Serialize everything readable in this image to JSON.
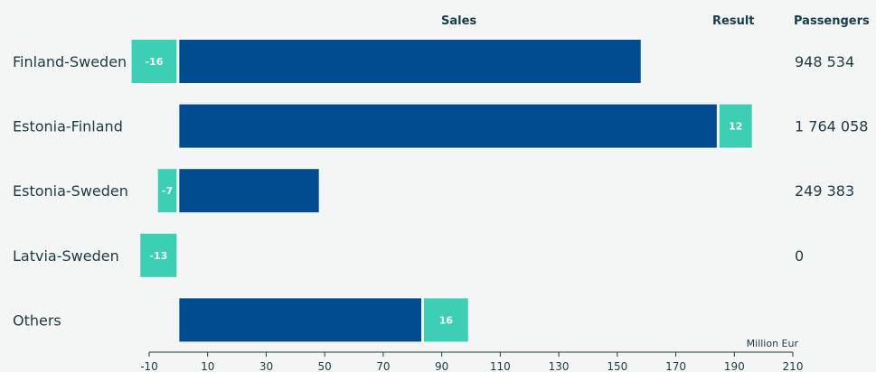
{
  "colors": {
    "sales": "#004a8f",
    "result": "#3dcfb5",
    "text": "#1d3a44",
    "background": "#f4f6f6"
  },
  "headers": {
    "sales": "Sales",
    "result": "Result",
    "passengers": "Passengers"
  },
  "chart_data": {
    "type": "bar",
    "orientation": "horizontal",
    "stacked": true,
    "categories": [
      "Finland-Sweden",
      "Estonia-Finland",
      "Estonia-Sweden",
      "Latvia-Sweden",
      "Others"
    ],
    "series": [
      {
        "name": "Sales",
        "values": [
          158,
          184,
          48,
          0,
          83
        ]
      },
      {
        "name": "Result",
        "values": [
          -16,
          12,
          -7,
          -13,
          16
        ]
      }
    ],
    "result_labels": [
      "-16",
      "12",
      "-7",
      "-13",
      "16"
    ],
    "passengers": [
      "948 534",
      "1 764 058",
      "249 383",
      "0",
      ""
    ],
    "xlim": [
      -10,
      210
    ],
    "xticks": [
      -10,
      10,
      30,
      50,
      70,
      90,
      110,
      130,
      150,
      170,
      190,
      210
    ],
    "unit_label": "Million Eur",
    "grid": false,
    "legend": "none"
  }
}
